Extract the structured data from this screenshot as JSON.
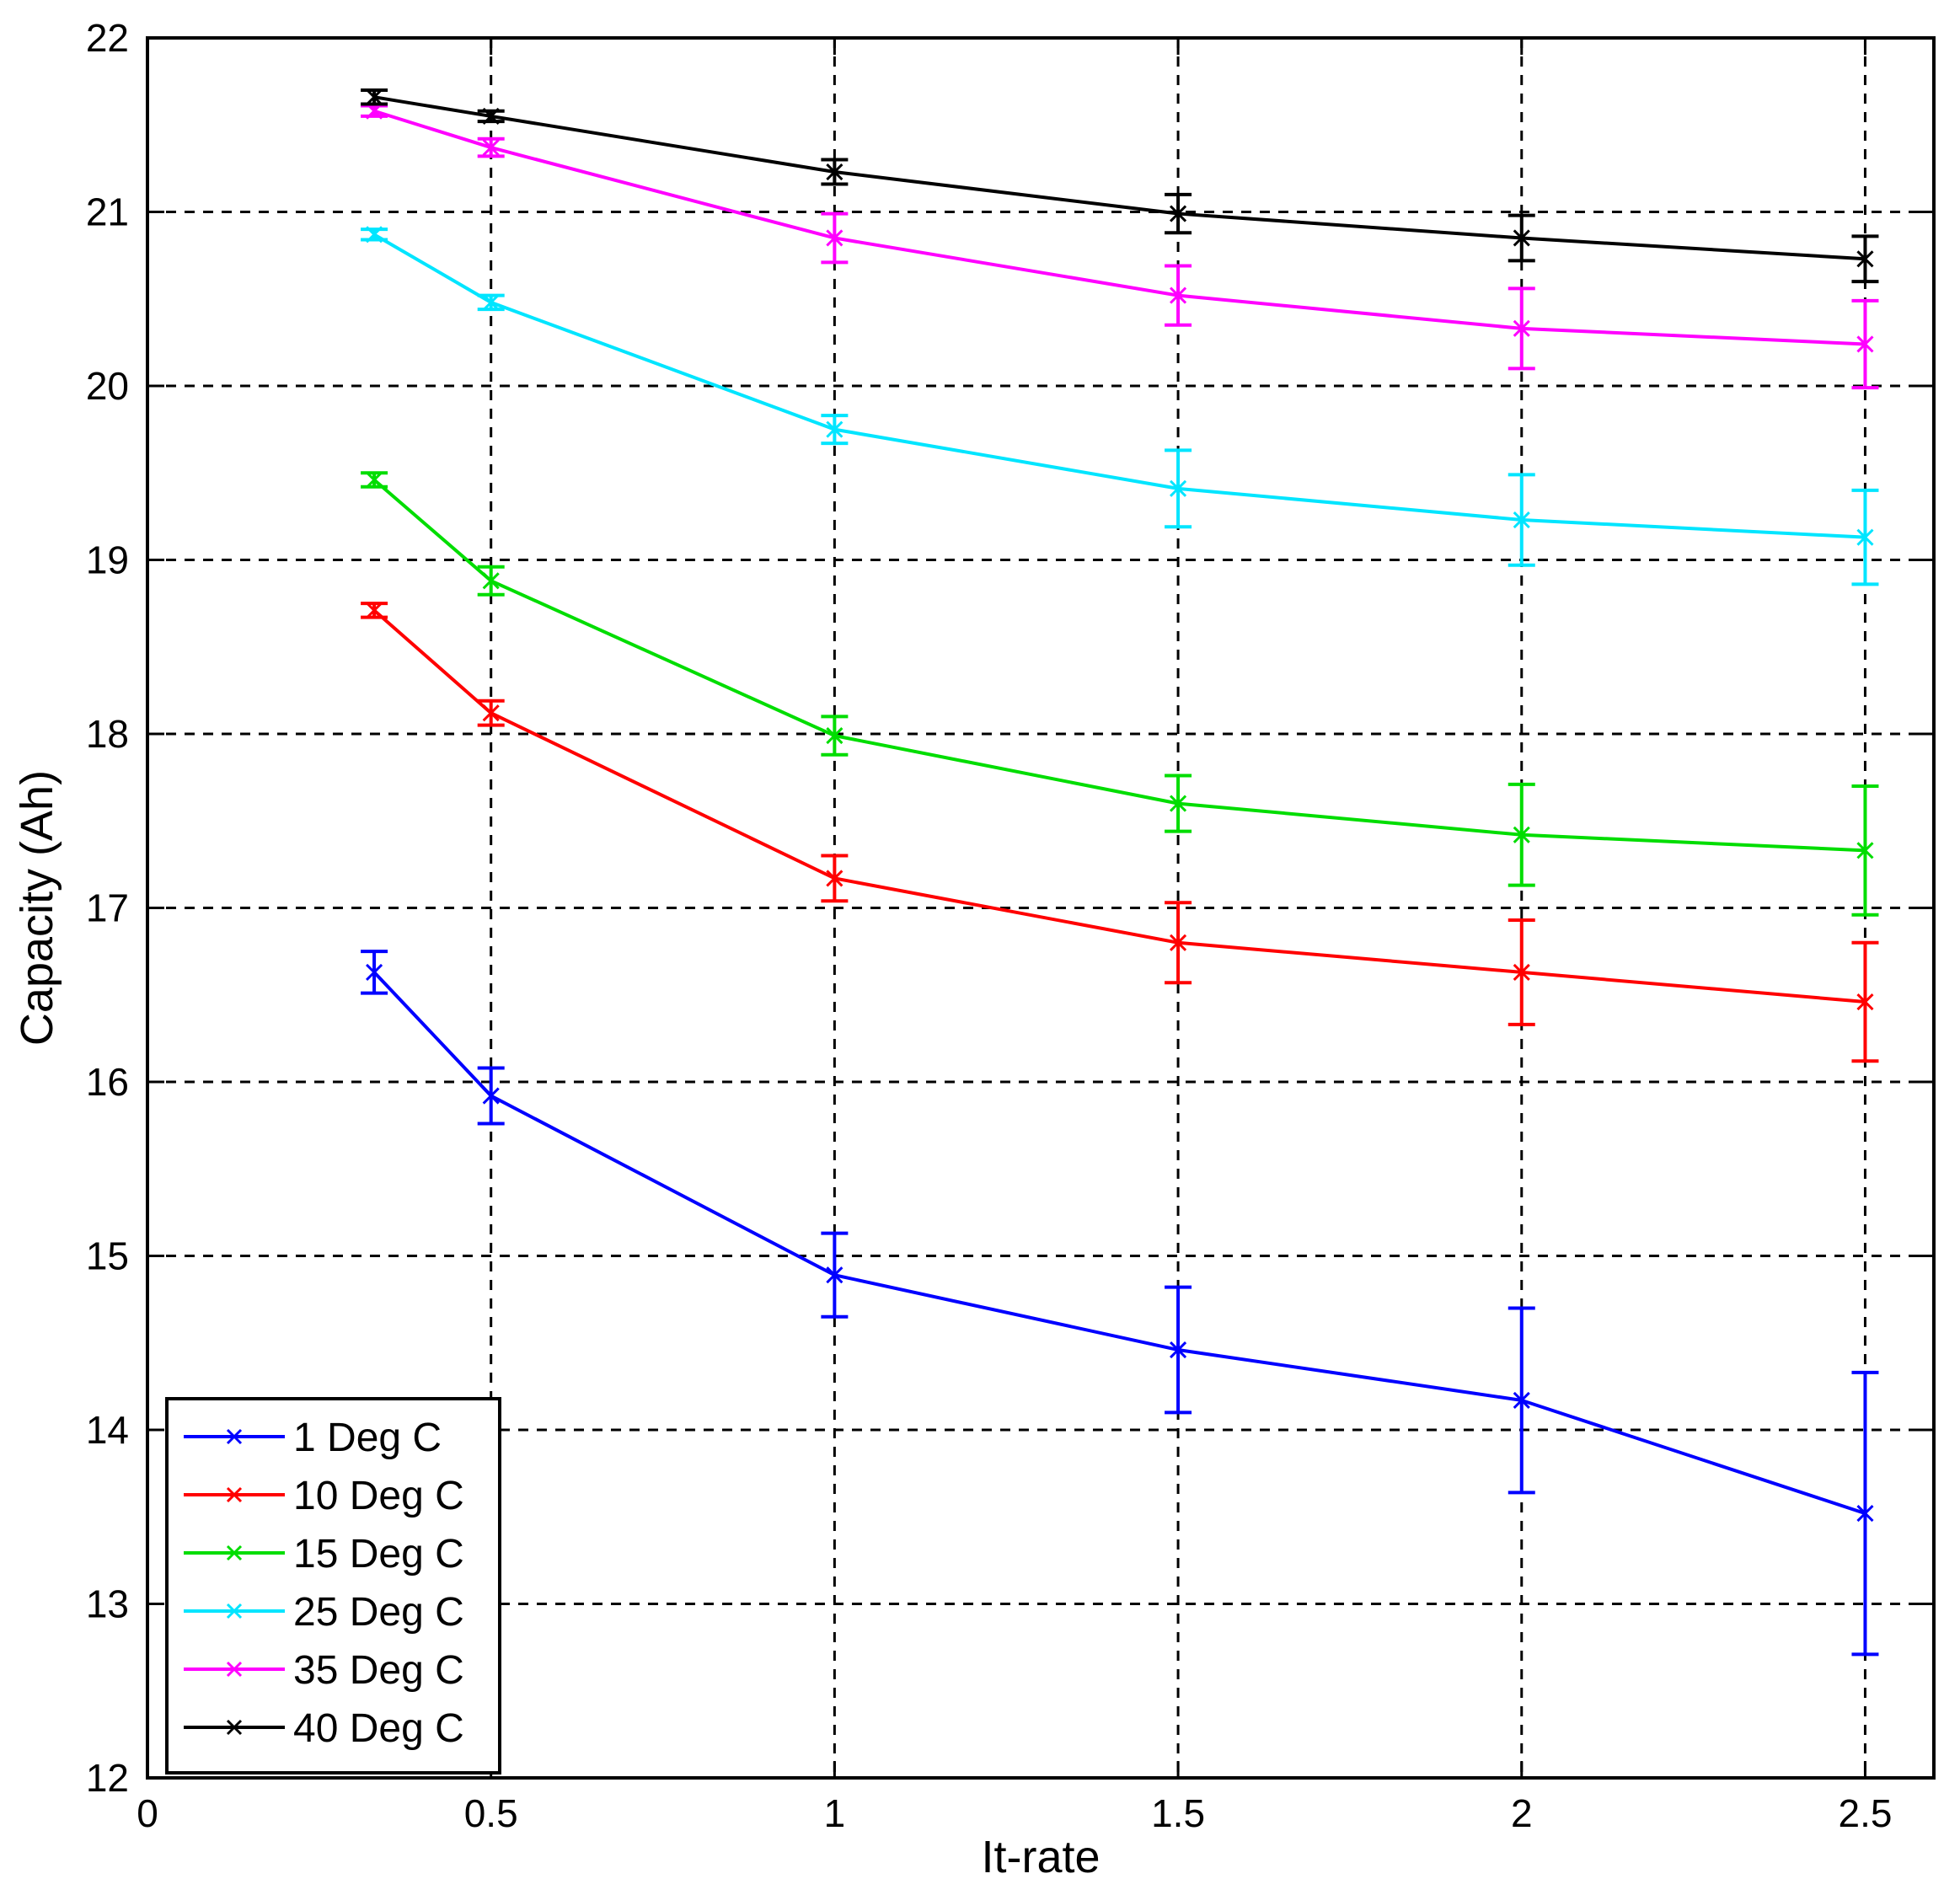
{
  "chart_data": {
    "type": "line",
    "title": "",
    "xlabel": "It-rate",
    "ylabel": "Capacity (Ah)",
    "xlim": [
      0,
      2.6
    ],
    "ylim": [
      12,
      22
    ],
    "xticks": [
      0,
      0.5,
      1,
      1.5,
      2,
      2.5
    ],
    "xtick_labels": [
      "0",
      "0.5",
      "1",
      "1.5",
      "2",
      "2.5"
    ],
    "yticks": [
      12,
      13,
      14,
      15,
      16,
      17,
      18,
      19,
      20,
      21,
      22
    ],
    "ytick_labels": [
      "12",
      "13",
      "14",
      "15",
      "16",
      "17",
      "18",
      "19",
      "20",
      "21",
      "22"
    ],
    "grid": true,
    "legend_position": "bottom-left",
    "x": [
      0.33,
      0.5,
      1,
      1.5,
      2,
      2.5
    ],
    "series": [
      {
        "name": "1 Deg C",
        "color": "#0000ff",
        "marker": "x",
        "values": [
          16.63,
          15.92,
          14.89,
          14.46,
          14.17,
          13.52
        ],
        "error": [
          0.12,
          0.16,
          0.24,
          0.36,
          0.53,
          0.81
        ]
      },
      {
        "name": "10 Deg C",
        "color": "#ff0000",
        "marker": "x",
        "values": [
          18.71,
          18.12,
          17.17,
          16.8,
          16.63,
          16.46
        ],
        "error": [
          0.04,
          0.07,
          0.13,
          0.23,
          0.3,
          0.34
        ]
      },
      {
        "name": "15 Deg C",
        "color": "#00dd00",
        "marker": "x",
        "values": [
          19.46,
          18.88,
          17.99,
          17.6,
          17.42,
          17.33
        ],
        "error": [
          0.04,
          0.08,
          0.11,
          0.16,
          0.29,
          0.37
        ]
      },
      {
        "name": "25 Deg C",
        "color": "#00e5ff",
        "marker": "x",
        "values": [
          20.87,
          20.48,
          19.75,
          19.41,
          19.23,
          19.13
        ],
        "error": [
          0.03,
          0.04,
          0.08,
          0.22,
          0.26,
          0.27
        ]
      },
      {
        "name": "35 Deg C",
        "color": "#ff00ff",
        "marker": "x",
        "values": [
          21.58,
          21.37,
          20.85,
          20.52,
          20.33,
          20.24
        ],
        "error": [
          0.03,
          0.05,
          0.14,
          0.17,
          0.23,
          0.25
        ]
      },
      {
        "name": "40 Deg C",
        "color": "#000000",
        "marker": "x",
        "values": [
          21.66,
          21.55,
          21.23,
          20.99,
          20.85,
          20.73
        ],
        "error": [
          0.04,
          0.03,
          0.07,
          0.11,
          0.13,
          0.13
        ]
      }
    ]
  }
}
